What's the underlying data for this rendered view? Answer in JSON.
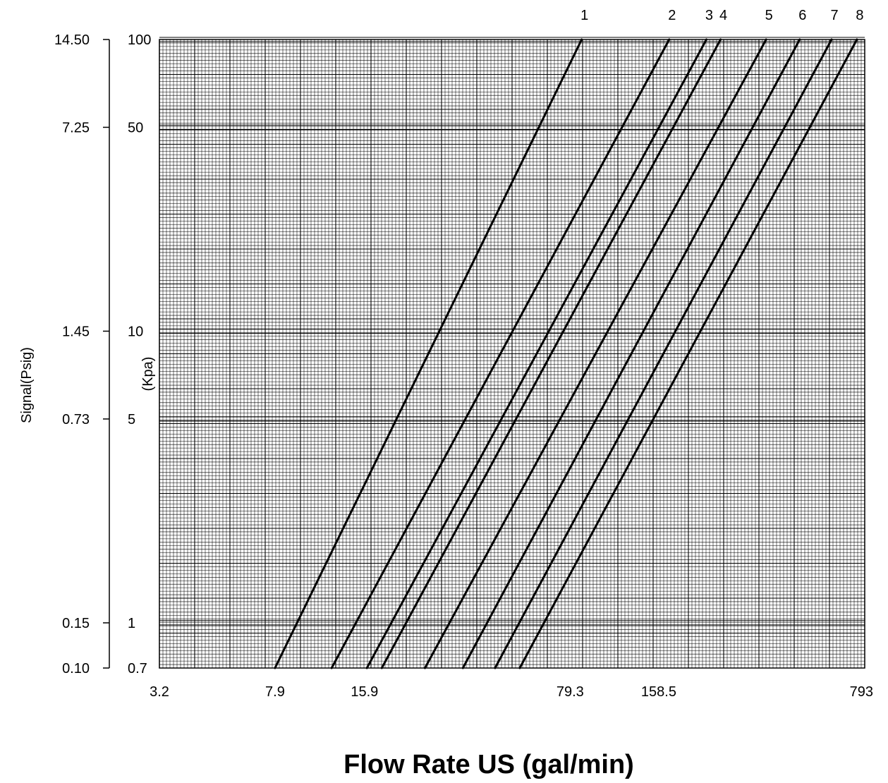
{
  "chart_data": {
    "type": "line",
    "title": "",
    "xlabel": "Flow Rate US (gal/min)",
    "ylabel_psig": "Signal(Psig)",
    "ylabel_kpa": "(Kpa)",
    "x_scale": "log",
    "y_scale": "log",
    "grid": true,
    "xlim": [
      3.2,
      793
    ],
    "ylim": [
      0.7,
      100
    ],
    "x_tick_labels": [
      "3.2",
      "7.9",
      "15.9",
      "79.3",
      "158.5",
      "793"
    ],
    "y_kpa_tick_labels": [
      "100",
      "50",
      "10",
      "5",
      "1",
      "0.7"
    ],
    "y_psig_tick_labels": [
      "14.50",
      "7.25",
      "1.45",
      "0.73",
      "0.15",
      "0.10"
    ],
    "series": [
      {
        "name": "1",
        "x": [
          7.9,
          86.8
        ],
        "y": [
          0.7,
          100
        ]
      },
      {
        "name": "2",
        "x": [
          12.3,
          172
        ],
        "y": [
          0.7,
          100
        ]
      },
      {
        "name": "3",
        "x": [
          16.2,
          230
        ],
        "y": [
          0.7,
          100
        ]
      },
      {
        "name": "4",
        "x": [
          18.2,
          257
        ],
        "y": [
          0.7,
          100
        ]
      },
      {
        "name": "5",
        "x": [
          25.5,
          367
        ],
        "y": [
          0.7,
          100
        ]
      },
      {
        "name": "6",
        "x": [
          34.3,
          477
        ],
        "y": [
          0.7,
          100
        ]
      },
      {
        "name": "7",
        "x": [
          44.1,
          612
        ],
        "y": [
          0.7,
          100
        ]
      },
      {
        "name": "8",
        "x": [
          53.5,
          746
        ],
        "y": [
          0.7,
          100
        ]
      }
    ]
  }
}
